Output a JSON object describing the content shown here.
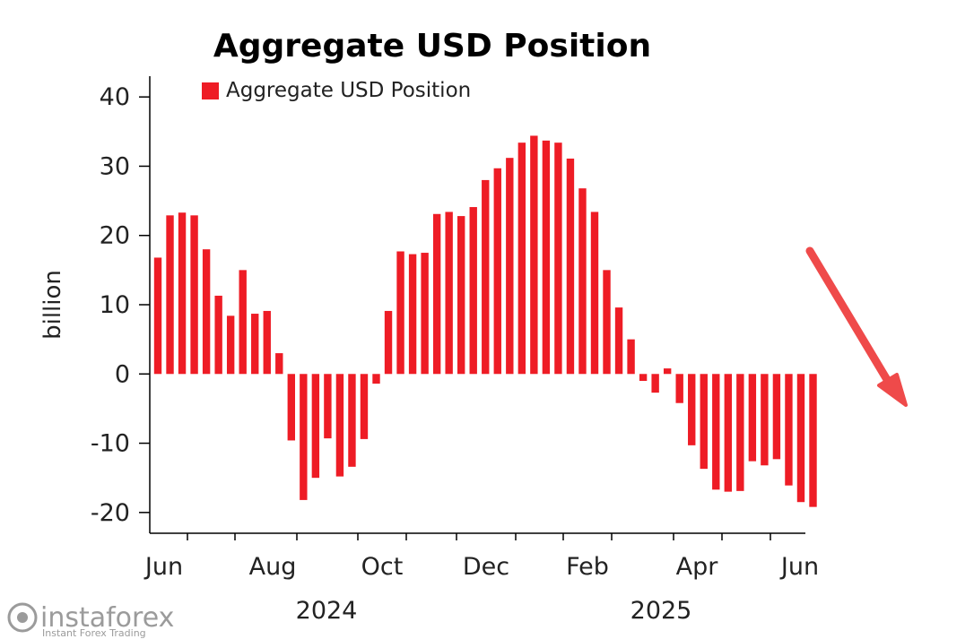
{
  "chart_data": {
    "type": "bar",
    "title": "Aggregate USD Position",
    "ylabel": "billion",
    "xlabel": "",
    "ylim": [
      -23,
      43
    ],
    "yticks": [
      -20,
      -10,
      0,
      10,
      20,
      30,
      40
    ],
    "ytick_labels": [
      "-20",
      "-10",
      "0",
      "10",
      "20",
      "30",
      "40"
    ],
    "month_labels": [
      "Jun",
      "Aug",
      "Oct",
      "Dec",
      "Feb",
      "Apr",
      "Jun"
    ],
    "year_labels": [
      "2024",
      "2025"
    ],
    "legend_position": "top-left",
    "grid": false,
    "color": "#ee1c25",
    "series": [
      {
        "name": "Aggregate USD Position",
        "values": [
          16.8,
          22.9,
          23.3,
          22.9,
          18.0,
          11.3,
          8.4,
          15.0,
          8.7,
          9.1,
          3.0,
          -9.6,
          -18.2,
          -15.0,
          -9.3,
          -14.8,
          -13.4,
          -9.4,
          -1.4,
          9.1,
          17.7,
          17.3,
          17.5,
          23.1,
          23.4,
          22.8,
          24.1,
          28.0,
          29.7,
          31.2,
          33.4,
          34.4,
          33.7,
          33.4,
          31.1,
          26.8,
          23.4,
          15.0,
          9.6,
          5.0,
          -1.0,
          -2.7,
          0.8,
          -4.2,
          -10.3,
          -13.7,
          -16.7,
          -17.0,
          -16.9,
          -12.6,
          -13.2,
          -12.3,
          -16.1,
          -18.5,
          -19.2
        ]
      }
    ]
  },
  "annotation": {
    "arrow_icon": "downward-arrow-icon",
    "arrow_color": "#ef4a4a"
  },
  "watermark": {
    "brand": "instaforex",
    "tagline": "Instant Forex Trading",
    "icon": "instaforex-logo-icon"
  }
}
